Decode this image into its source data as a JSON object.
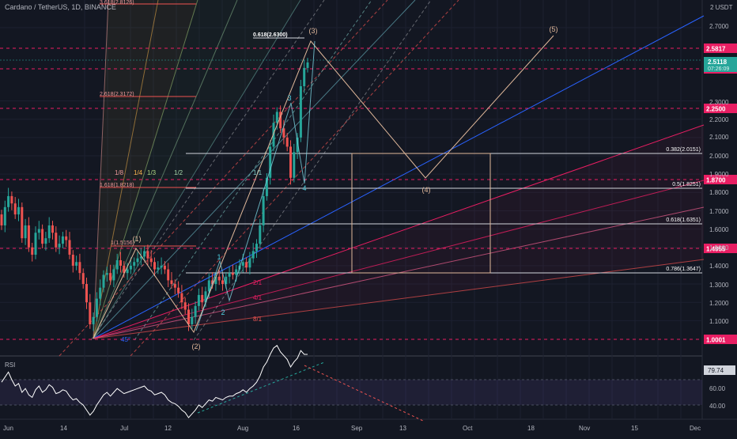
{
  "header": {
    "symbol_title": "Cardano / TetherUS, 1D, BINANCE",
    "currency": "USDT"
  },
  "rsi": {
    "label": "RSI",
    "value": "79.74",
    "ticks": [
      "60.00",
      "40.00"
    ]
  },
  "chart_data": {
    "type": "candlestick",
    "price_axis": {
      "ticks": [
        "2.7000",
        "2.3000",
        "2.2000",
        "2.1000",
        "2.0000",
        "1.9000",
        "1.8000",
        "1.7000",
        "1.6000",
        "1.5000",
        "1.4000",
        "1.3000",
        "1.2000",
        "1.1000"
      ],
      "top_label": "2"
    },
    "time_axis": {
      "ticks": [
        "Jun",
        "14",
        "Jul",
        "12",
        "Aug",
        "16",
        "Sep",
        "13",
        "Oct",
        "18",
        "Nov",
        "15",
        "Dec"
      ]
    },
    "current_price": {
      "price": "2.5118",
      "countdown": "07:26:09"
    },
    "levels": [
      {
        "price": "2.5817",
        "color": "#e91e63"
      },
      {
        "price": "2.4684",
        "color": "#e91e63"
      },
      {
        "price": "2.2500",
        "color": "#e91e63"
      },
      {
        "price": "1.8700",
        "color": "#e91e63"
      },
      {
        "price": "1.4955",
        "color": "#e91e63"
      },
      {
        "price": "1.0001",
        "color": "#e91e63"
      }
    ],
    "fib_retracement": [
      {
        "label": "0.382(2.0151)"
      },
      {
        "label": "0.5(1.8251)"
      },
      {
        "label": "0.618(1.6351)"
      },
      {
        "label": "0.786(1.3647)"
      }
    ],
    "fib_extension": [
      {
        "label": "0.618(2.6300)"
      },
      {
        "label": "2.618(2.3172)"
      },
      {
        "label": "1.618(1.8218)"
      },
      {
        "label": "1(1.5156)"
      },
      {
        "label": "3.618(2.8126)"
      }
    ],
    "gann_fan_labels": [
      "1/8",
      "1/4",
      "1/3",
      "1/2",
      "1/1",
      "2/1",
      "4/1",
      "8/1",
      "45°"
    ],
    "elliott_major": [
      "(1)",
      "(2)",
      "(3)",
      "(4)",
      "(5)"
    ],
    "elliott_minor": [
      "1",
      "2",
      "3",
      "4"
    ],
    "colors": {
      "up": "#26a69a",
      "down": "#ef5350",
      "level": "#e91e63",
      "wave": "#e0b89a",
      "trend": "#2962ff"
    }
  }
}
